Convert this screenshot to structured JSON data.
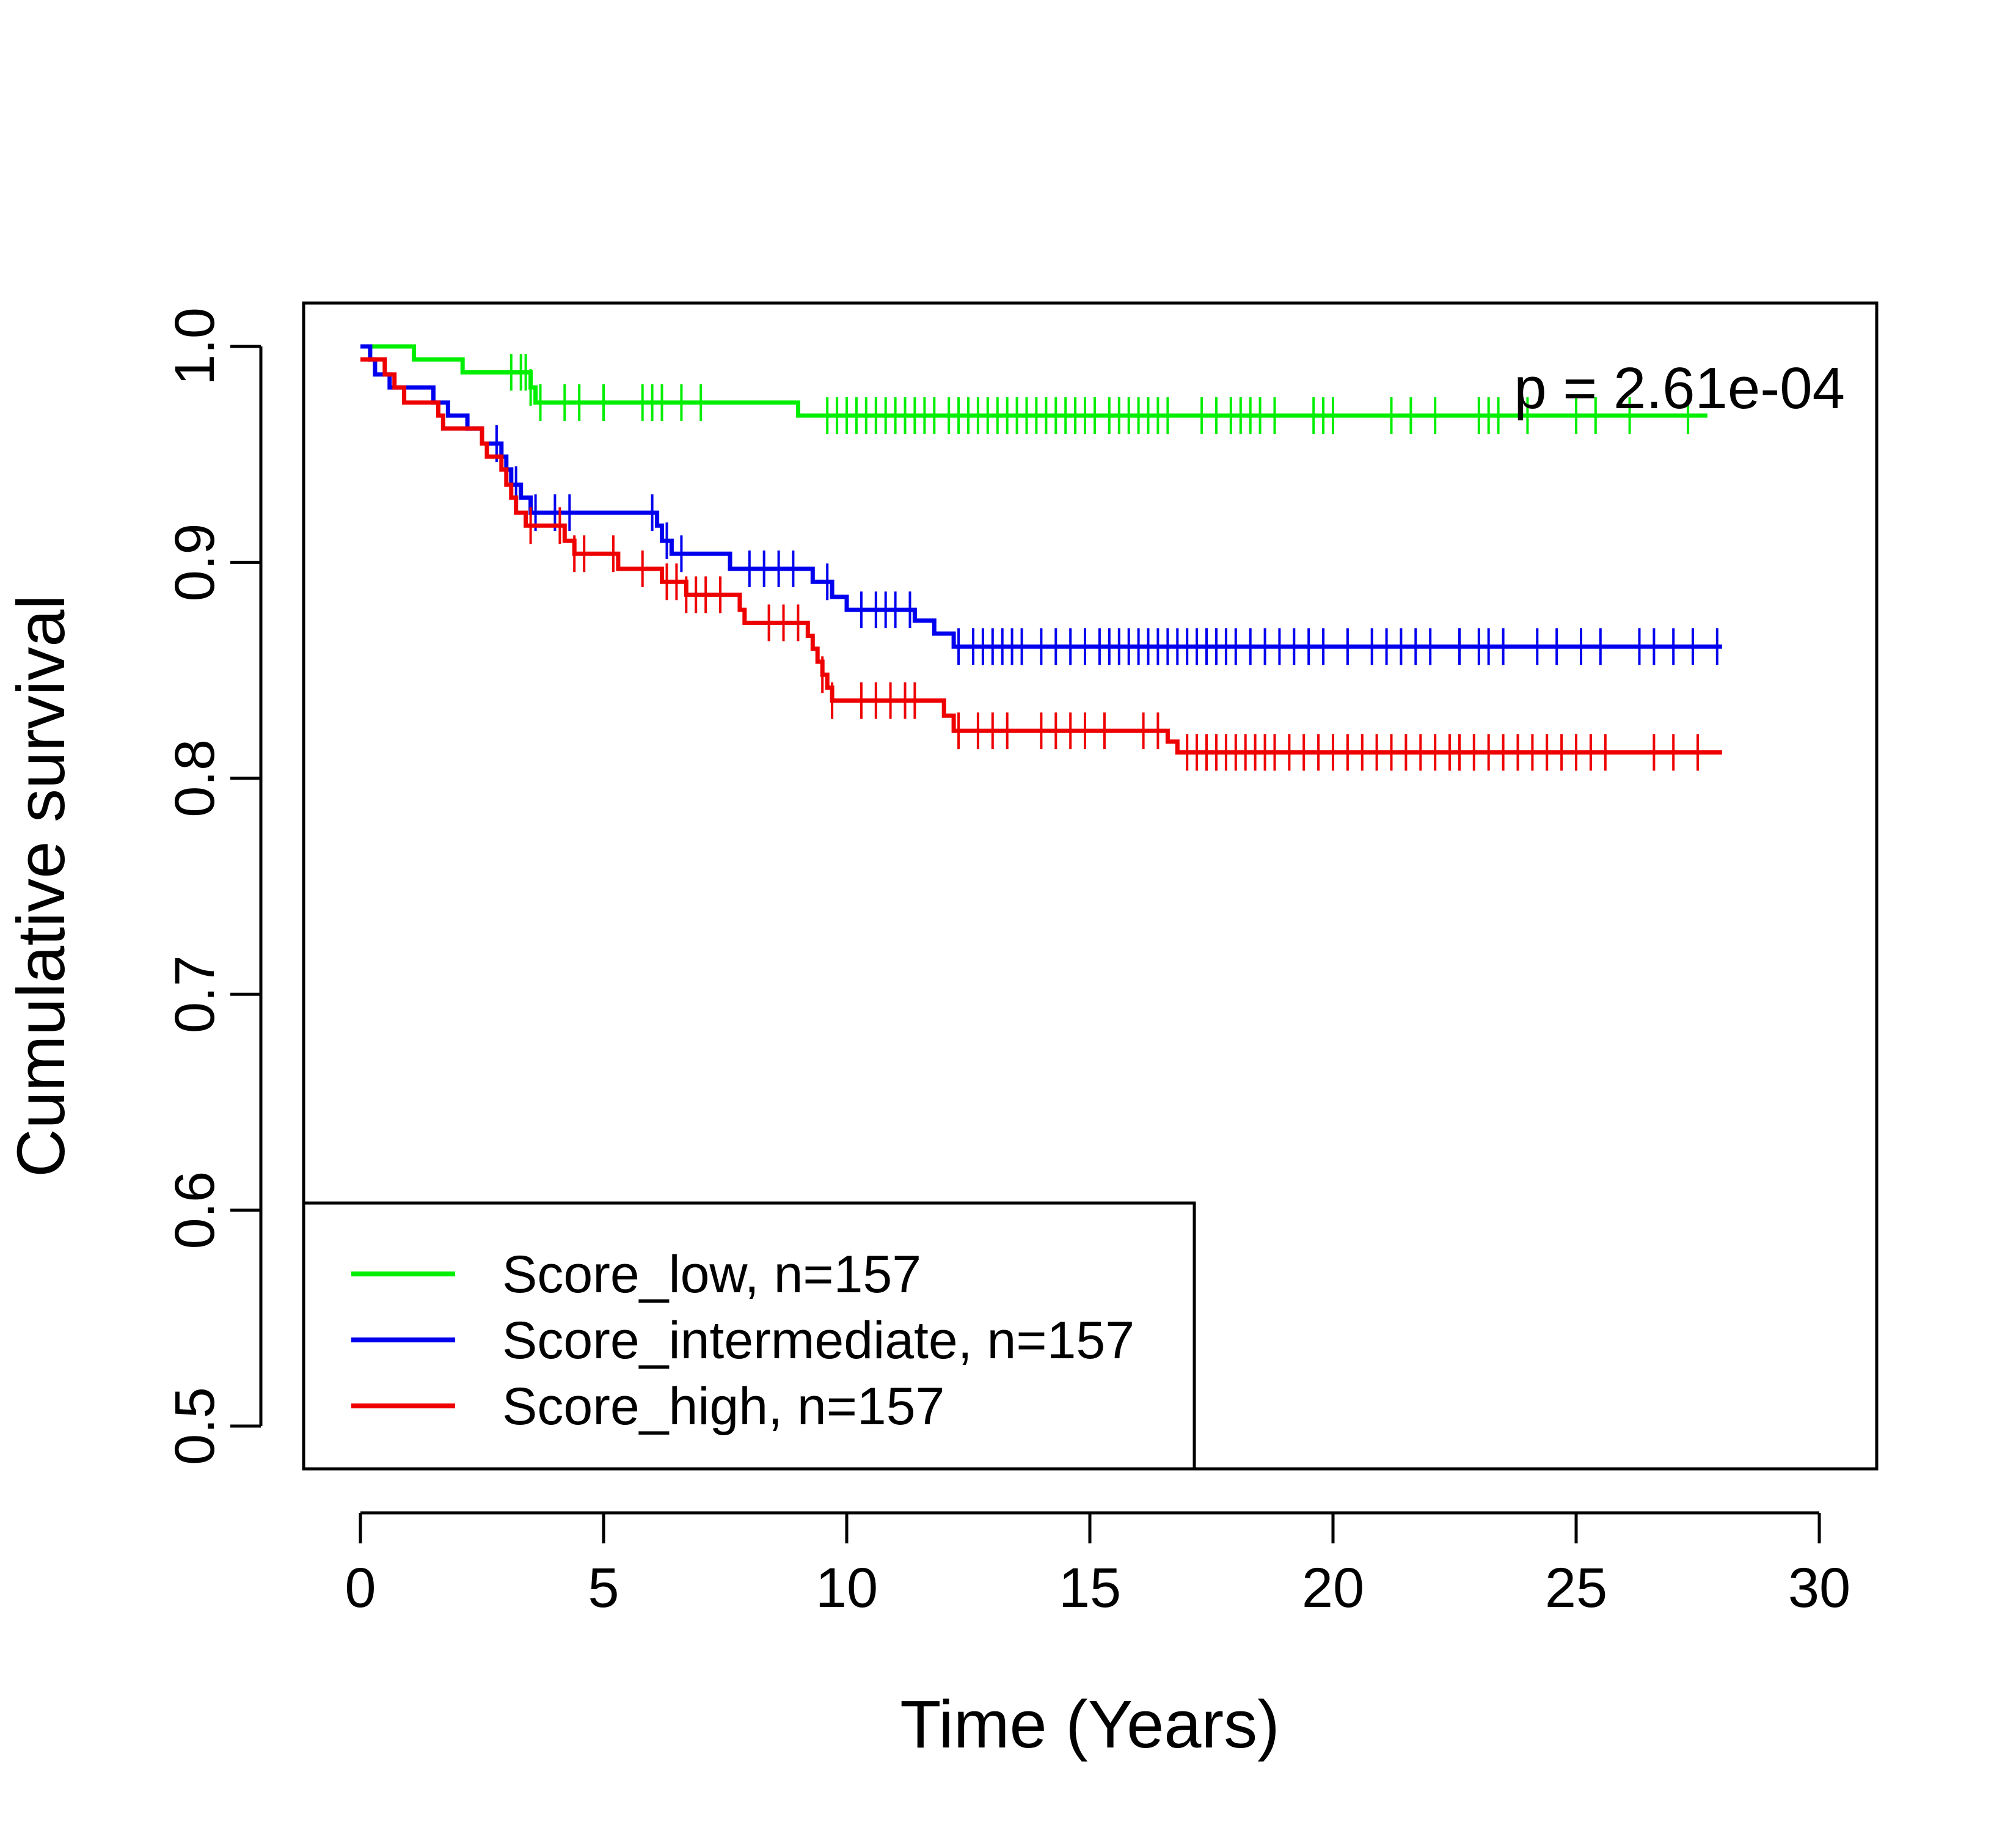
{
  "chart_data": {
    "type": "line",
    "subtype": "kaplan-meier",
    "xlabel": "Time (Years)",
    "ylabel": "Cumulative survival",
    "xlim": [
      0,
      30
    ],
    "ylim": [
      0.5,
      1.0
    ],
    "xticks": [
      "0",
      "5",
      "10",
      "15",
      "20",
      "25",
      "30"
    ],
    "yticks": [
      "0.5",
      "0.6",
      "0.7",
      "0.8",
      "0.9",
      "1.0"
    ],
    "annotation": "p = 2.61e-04",
    "grid": false,
    "legend_position": "bottom-left",
    "series": [
      {
        "name": "Score_low, n=157",
        "color": "#00ee00",
        "steps": [
          [
            0,
            1.0
          ],
          [
            1.1,
            0.994
          ],
          [
            2.1,
            0.988
          ],
          [
            3.5,
            0.981
          ],
          [
            3.6,
            0.974
          ],
          [
            9.0,
            0.968
          ],
          [
            27.7,
            0.968
          ]
        ],
        "censor_times": [
          3.1,
          3.3,
          3.4,
          3.5,
          3.7,
          4.2,
          4.5,
          5.0,
          5.8,
          6.0,
          6.2,
          6.6,
          7.0,
          9.6,
          9.8,
          10.0,
          10.2,
          10.4,
          10.6,
          10.8,
          11.0,
          11.2,
          11.4,
          11.6,
          11.8,
          12.1,
          12.3,
          12.5,
          12.7,
          12.9,
          13.1,
          13.3,
          13.5,
          13.7,
          13.9,
          14.1,
          14.3,
          14.5,
          14.7,
          14.9,
          15.1,
          15.4,
          15.6,
          15.8,
          16.0,
          16.2,
          16.4,
          16.6,
          17.3,
          17.6,
          17.9,
          18.1,
          18.3,
          18.5,
          18.8,
          19.6,
          19.8,
          20.0,
          21.2,
          21.6,
          22.1,
          23.0,
          23.2,
          23.4,
          24.0,
          25.0,
          25.4,
          26.1,
          27.3
        ]
      },
      {
        "name": "Score_intermediate, n=157",
        "color": "#0000ee",
        "steps": [
          [
            0,
            1.0
          ],
          [
            0.2,
            0.994
          ],
          [
            0.3,
            0.987
          ],
          [
            0.6,
            0.981
          ],
          [
            1.5,
            0.974
          ],
          [
            1.8,
            0.968
          ],
          [
            2.2,
            0.962
          ],
          [
            2.5,
            0.955
          ],
          [
            2.9,
            0.949
          ],
          [
            3.0,
            0.943
          ],
          [
            3.1,
            0.936
          ],
          [
            3.3,
            0.93
          ],
          [
            3.5,
            0.923
          ],
          [
            6.1,
            0.917
          ],
          [
            6.2,
            0.91
          ],
          [
            6.4,
            0.904
          ],
          [
            7.6,
            0.897
          ],
          [
            9.3,
            0.891
          ],
          [
            9.7,
            0.884
          ],
          [
            10.0,
            0.878
          ],
          [
            11.4,
            0.873
          ],
          [
            11.8,
            0.867
          ],
          [
            12.2,
            0.861
          ],
          [
            28.0,
            0.861
          ]
        ],
        "censor_times": [
          2.8,
          3.2,
          3.6,
          4.0,
          4.3,
          6.0,
          6.3,
          6.6,
          8.0,
          8.3,
          8.6,
          8.9,
          9.6,
          10.3,
          10.6,
          10.8,
          11.0,
          11.3,
          12.3,
          12.6,
          12.8,
          13.0,
          13.2,
          13.4,
          13.6,
          14.0,
          14.3,
          14.6,
          14.9,
          15.2,
          15.4,
          15.6,
          15.8,
          16.0,
          16.2,
          16.4,
          16.6,
          16.8,
          17.0,
          17.2,
          17.4,
          17.6,
          17.8,
          18.0,
          18.3,
          18.6,
          18.9,
          19.2,
          19.5,
          19.8,
          20.3,
          20.8,
          21.1,
          21.4,
          21.7,
          22.0,
          22.6,
          23.0,
          23.2,
          23.5,
          24.2,
          24.6,
          25.1,
          25.5,
          26.3,
          26.6,
          27.0,
          27.4,
          27.9
        ]
      },
      {
        "name": "Score_high, n=157",
        "color": "#ee0000",
        "steps": [
          [
            0,
            0.994
          ],
          [
            0.5,
            0.987
          ],
          [
            0.7,
            0.981
          ],
          [
            0.9,
            0.974
          ],
          [
            1.6,
            0.968
          ],
          [
            1.7,
            0.962
          ],
          [
            2.5,
            0.955
          ],
          [
            2.6,
            0.949
          ],
          [
            2.9,
            0.943
          ],
          [
            3.0,
            0.936
          ],
          [
            3.1,
            0.93
          ],
          [
            3.2,
            0.923
          ],
          [
            3.4,
            0.917
          ],
          [
            4.2,
            0.91
          ],
          [
            4.4,
            0.904
          ],
          [
            5.3,
            0.897
          ],
          [
            6.2,
            0.891
          ],
          [
            6.7,
            0.885
          ],
          [
            7.8,
            0.878
          ],
          [
            7.9,
            0.872
          ],
          [
            9.2,
            0.866
          ],
          [
            9.3,
            0.86
          ],
          [
            9.4,
            0.854
          ],
          [
            9.5,
            0.848
          ],
          [
            9.6,
            0.842
          ],
          [
            9.7,
            0.836
          ],
          [
            12.0,
            0.829
          ],
          [
            12.2,
            0.822
          ],
          [
            16.6,
            0.817
          ],
          [
            16.8,
            0.812
          ],
          [
            28.0,
            0.812
          ]
        ],
        "censor_times": [
          3.5,
          4.1,
          4.4,
          4.6,
          5.2,
          5.8,
          6.3,
          6.5,
          6.7,
          6.9,
          7.1,
          7.4,
          8.4,
          8.7,
          9.0,
          9.5,
          9.7,
          10.3,
          10.6,
          10.9,
          11.2,
          11.4,
          12.3,
          12.7,
          13.0,
          13.3,
          14.0,
          14.3,
          14.6,
          14.9,
          15.3,
          16.1,
          16.4,
          17.0,
          17.2,
          17.4,
          17.6,
          17.8,
          18.0,
          18.2,
          18.4,
          18.6,
          18.8,
          19.1,
          19.4,
          19.7,
          20.0,
          20.3,
          20.6,
          20.9,
          21.2,
          21.5,
          21.8,
          22.1,
          22.4,
          22.6,
          22.9,
          23.2,
          23.5,
          23.8,
          24.1,
          24.4,
          24.7,
          25.0,
          25.3,
          25.6,
          26.6,
          27.0,
          27.5
        ]
      }
    ]
  }
}
